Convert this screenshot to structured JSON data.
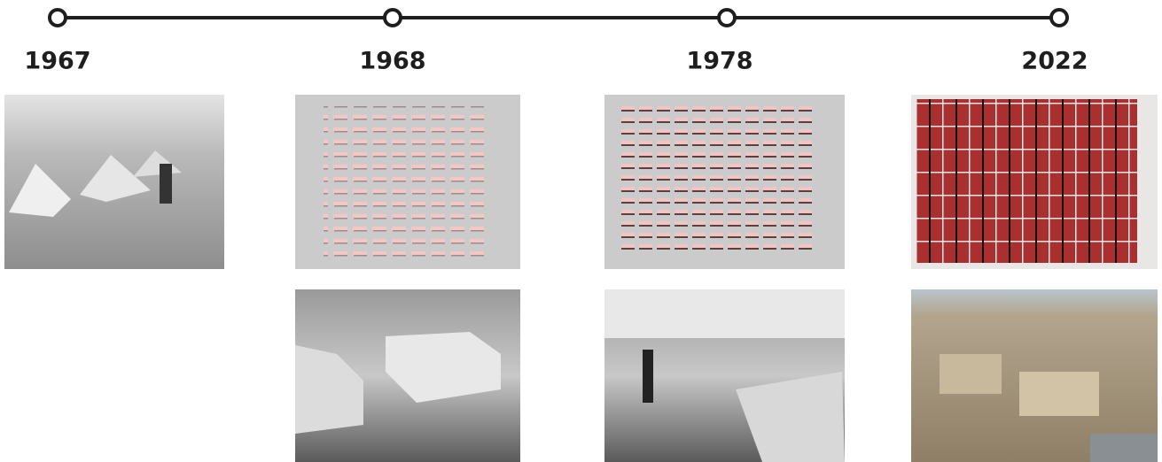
{
  "timeline": {
    "years": [
      "1967",
      "1968",
      "1978",
      "2022"
    ]
  }
}
